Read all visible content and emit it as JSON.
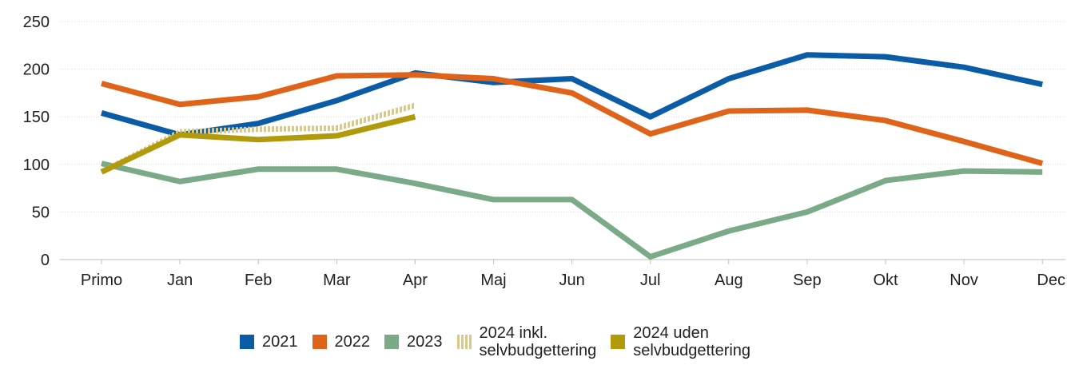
{
  "chart_data": {
    "type": "line",
    "categories": [
      "Primo",
      "Jan",
      "Feb",
      "Mar",
      "Apr",
      "Maj",
      "Jun",
      "Jul",
      "Aug",
      "Sep",
      "Okt",
      "Nov",
      "Dec"
    ],
    "series": [
      {
        "name": "2021",
        "color": "#0b5ca6",
        "style": "solid",
        "values": [
          154,
          131,
          143,
          167,
          196,
          186,
          190,
          150,
          190,
          215,
          213,
          202,
          184
        ]
      },
      {
        "name": "2022",
        "color": "#e0631a",
        "style": "solid",
        "values": [
          185,
          163,
          171,
          193,
          194,
          190,
          175,
          132,
          156,
          157,
          146,
          124,
          101
        ]
      },
      {
        "name": "2023",
        "color": "#7aaa87",
        "style": "solid",
        "values": [
          101,
          82,
          95,
          95,
          80,
          63,
          63,
          3,
          30,
          50,
          83,
          93,
          92
        ]
      },
      {
        "name": "2024 inkl.\nselvbudgettering",
        "color": "#d8c88a",
        "style": "hatched",
        "values": [
          92,
          134,
          137,
          138,
          162,
          null,
          null,
          null,
          null,
          null,
          null,
          null,
          null
        ]
      },
      {
        "name": "2024 uden\nselvbudgettering",
        "color": "#b19b0c",
        "style": "solid",
        "values": [
          92,
          131,
          126,
          130,
          150,
          null,
          null,
          null,
          null,
          null,
          null,
          null,
          null
        ]
      }
    ],
    "ylim": [
      0,
      250
    ],
    "yticks": [
      "0",
      "50",
      "100",
      "150",
      "200",
      "250"
    ],
    "grid": true,
    "legend": "bottom",
    "title": "",
    "xlabel": "",
    "ylabel": ""
  }
}
